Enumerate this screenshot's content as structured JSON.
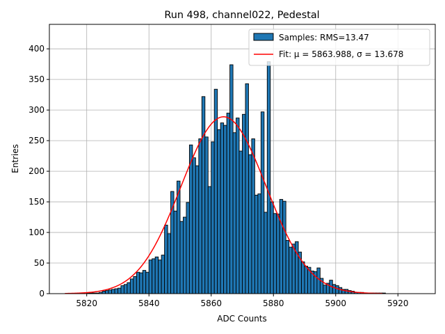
{
  "chart_data": {
    "type": "bar",
    "title": "Run 498, channel022, Pedestal",
    "xlabel": "ADC Counts",
    "ylabel": "Entries",
    "xlim": [
      5808,
      5932
    ],
    "ylim": [
      0,
      440
    ],
    "xticks": [
      5820,
      5840,
      5860,
      5880,
      5900,
      5920
    ],
    "yticks": [
      0,
      50,
      100,
      150,
      200,
      250,
      300,
      350,
      400
    ],
    "grid": true,
    "legend_position": "top-right",
    "bin_width": 1,
    "bin_start": 5820,
    "values": [
      1,
      1,
      1,
      1,
      2,
      4,
      5,
      6,
      7,
      8,
      9,
      13,
      15,
      18,
      24,
      28,
      35,
      34,
      38,
      35,
      55,
      57,
      60,
      55,
      63,
      112,
      98,
      167,
      135,
      184,
      118,
      125,
      149,
      243,
      222,
      209,
      253,
      322,
      256,
      175,
      248,
      334,
      268,
      279,
      275,
      295,
      374,
      263,
      287,
      233,
      293,
      343,
      227,
      253,
      161,
      163,
      297,
      133,
      379,
      150,
      131,
      130,
      154,
      151,
      87,
      76,
      81,
      85,
      68,
      52,
      45,
      43,
      37,
      36,
      42,
      25,
      14,
      17,
      22,
      15,
      13,
      10,
      7,
      7,
      5,
      4,
      2,
      2,
      2,
      1,
      1,
      1,
      1,
      1,
      1,
      1
    ],
    "series": [
      {
        "name": "Samples: RMS=13.47",
        "kind": "histogram",
        "color": "#1f77b4"
      },
      {
        "name": "Fit: μ = 5863.988, σ = 13.678",
        "kind": "line",
        "color": "#ff0000",
        "mu": 5863.988,
        "sigma": 13.678,
        "amplitude": 289,
        "x_range": [
          5813,
          5915
        ]
      }
    ]
  }
}
